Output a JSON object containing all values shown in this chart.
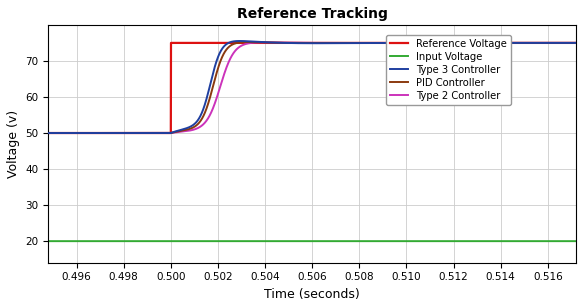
{
  "title": "Reference Tracking",
  "xlabel": "Time (seconds)",
  "ylabel": "Voltage (v)",
  "xlim": [
    0.4948,
    0.5172
  ],
  "ylim": [
    14,
    80
  ],
  "xticks": [
    0.496,
    0.498,
    0.5,
    0.502,
    0.504,
    0.506,
    0.508,
    0.51,
    0.512,
    0.514,
    0.516
  ],
  "yticks": [
    20,
    30,
    40,
    50,
    60,
    70
  ],
  "background_color": "#ffffff",
  "grid_color": "#cccccc",
  "t_step": 0.5,
  "v_init": 50,
  "v_ref": 75,
  "v_input": 20,
  "colors": {
    "type3": "#1f3fa0",
    "input": "#33aa33",
    "reference": "#dd1111",
    "pid": "#8b3a0f",
    "type2": "#cc33bb"
  },
  "legend_labels": [
    "Type 3 Controller",
    "Input Voltage",
    "Reference Voltage",
    "PID Controller",
    "Type 2 Controller"
  ],
  "linewidth": 1.4
}
